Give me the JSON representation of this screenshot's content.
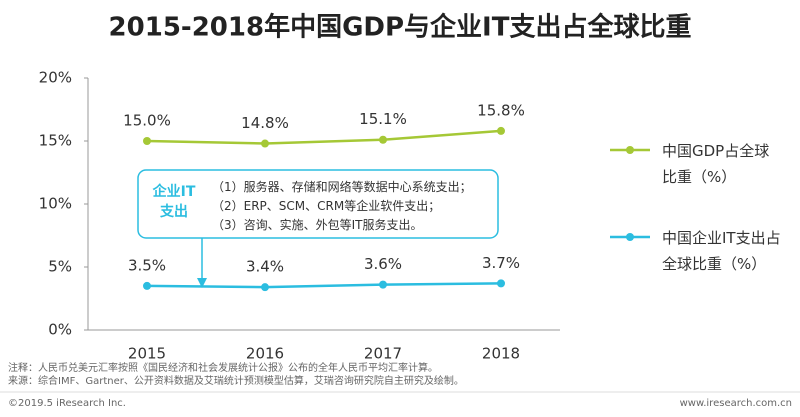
{
  "chart_data": {
    "type": "line",
    "title": "2015-2018年中国GDP与企业IT支出占全球比重",
    "categories": [
      "2015",
      "2016",
      "2017",
      "2018"
    ],
    "series": [
      {
        "name": "中国GDP占全球比重（%）",
        "color": "#a5c836",
        "values": [
          15.0,
          14.8,
          15.1,
          15.8
        ],
        "value_labels": [
          "15.0%",
          "14.8%",
          "15.1%",
          "15.8%"
        ]
      },
      {
        "name": "中国企业IT支出占全球比重（%）",
        "color": "#2bbde0",
        "values": [
          3.5,
          3.4,
          3.6,
          3.7
        ],
        "value_labels": [
          "3.5%",
          "3.4%",
          "3.6%",
          "3.7%"
        ]
      }
    ],
    "ylim": [
      0,
      20
    ],
    "yticks": [
      {
        "value": 0,
        "label": "0%"
      },
      {
        "value": 5,
        "label": "5%"
      },
      {
        "value": 10,
        "label": "10%"
      },
      {
        "value": 15,
        "label": "15%"
      },
      {
        "value": 20,
        "label": "20%"
      }
    ],
    "grid": false,
    "legend": "right",
    "annotation": {
      "title": "企业IT支出",
      "lines": [
        "（1）服务器、存储和网络等数据中心系统支出；",
        "（2）ERP、SCM、CRM等企业软件支出；",
        "（3）咨询、实施、外包等IT服务支出。"
      ]
    },
    "notes": [
      "注释：人民币兑美元汇率按照《国民经济和社会发展统计公报》公布的全年人民币平均汇率计算。",
      "来源：综合IMF、Gartner、公开资料数据及艾瑞统计预测模型估算，艾瑞咨询研究院自主研究及绘制。"
    ],
    "copyright": "©2019.5 iResearch Inc.",
    "website": "www.iresearch.com.cn"
  }
}
